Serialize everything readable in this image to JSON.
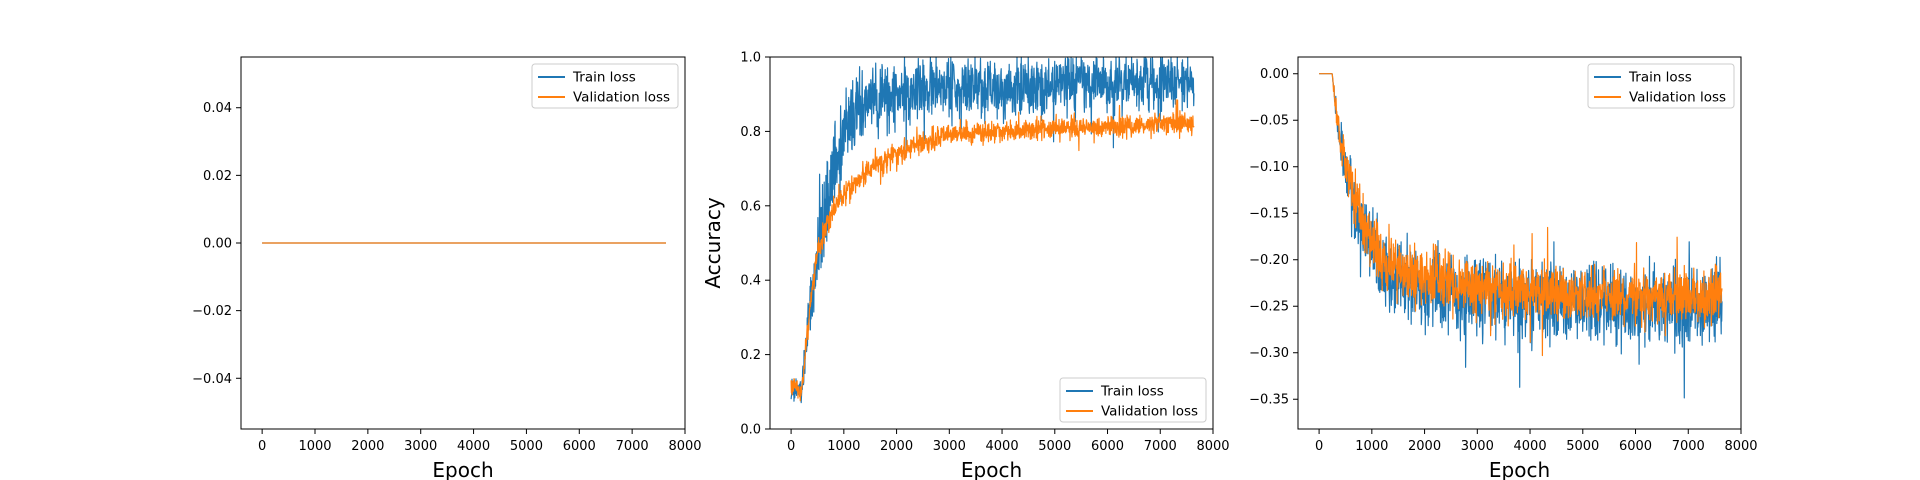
{
  "colors": {
    "train": "#1f77b4",
    "validation": "#ff7f0e"
  },
  "chart_data": [
    {
      "type": "line",
      "title": "",
      "xlabel": "Epoch",
      "ylabel": "",
      "xlim": [
        -400,
        8000
      ],
      "ylim": [
        -0.055,
        0.055
      ],
      "xticks": [
        0,
        1000,
        2000,
        3000,
        4000,
        5000,
        6000,
        7000,
        8000
      ],
      "xtick_labels": [
        "0",
        "1000",
        "2000",
        "3000",
        "4000",
        "5000",
        "6000",
        "7000",
        "8000"
      ],
      "yticks": [
        -0.04,
        -0.02,
        0.0,
        0.02,
        0.04
      ],
      "ytick_labels": [
        "−0.04",
        "−0.02",
        "0.00",
        "0.02",
        "0.04"
      ],
      "legend_position": "top-right",
      "series": [
        {
          "name": "Train loss",
          "x": [
            0,
            7640
          ],
          "values": [
            0,
            0
          ]
        },
        {
          "name": "Validation loss",
          "x": [
            0,
            7640
          ],
          "values": [
            0,
            0
          ]
        }
      ]
    },
    {
      "type": "line",
      "title": "",
      "xlabel": "Epoch",
      "ylabel": "Accuracy",
      "xlim": [
        -400,
        8000
      ],
      "ylim": [
        0.0,
        1.0
      ],
      "xticks": [
        0,
        1000,
        2000,
        3000,
        4000,
        5000,
        6000,
        7000,
        8000
      ],
      "xtick_labels": [
        "0",
        "1000",
        "2000",
        "3000",
        "4000",
        "5000",
        "6000",
        "7000",
        "8000"
      ],
      "yticks": [
        0.0,
        0.2,
        0.4,
        0.6,
        0.8,
        1.0
      ],
      "ytick_labels": [
        "0.0",
        "0.2",
        "0.4",
        "0.6",
        "0.8",
        "1.0"
      ],
      "legend_position": "bottom-right",
      "series": [
        {
          "name": "Train loss",
          "x": [
            0,
            200,
            300,
            400,
            500,
            600,
            800,
            1000,
            1200,
            1500,
            2000,
            2500,
            3000,
            4000,
            5000,
            6000,
            7000,
            7640
          ],
          "values": [
            0.1,
            0.1,
            0.25,
            0.35,
            0.45,
            0.55,
            0.7,
            0.8,
            0.85,
            0.88,
            0.9,
            0.91,
            0.92,
            0.92,
            0.93,
            0.93,
            0.93,
            0.93
          ],
          "noise": [
            0.03,
            0.03,
            0.06,
            0.08,
            0.1,
            0.1,
            0.1,
            0.09,
            0.08,
            0.07,
            0.07,
            0.07,
            0.07,
            0.07,
            0.06,
            0.06,
            0.06,
            0.06
          ]
        },
        {
          "name": "Validation loss",
          "x": [
            0,
            200,
            300,
            400,
            500,
            600,
            800,
            1000,
            1200,
            1500,
            2000,
            2500,
            3000,
            4000,
            5000,
            6000,
            7000,
            7640
          ],
          "values": [
            0.12,
            0.1,
            0.25,
            0.38,
            0.47,
            0.52,
            0.59,
            0.63,
            0.66,
            0.7,
            0.74,
            0.77,
            0.79,
            0.8,
            0.81,
            0.81,
            0.82,
            0.82
          ],
          "noise": [
            0.02,
            0.02,
            0.03,
            0.03,
            0.03,
            0.03,
            0.025,
            0.025,
            0.025,
            0.025,
            0.025,
            0.025,
            0.025,
            0.025,
            0.025,
            0.025,
            0.025,
            0.025
          ]
        }
      ]
    },
    {
      "type": "line",
      "title": "",
      "xlabel": "Epoch",
      "ylabel": "",
      "xlim": [
        -400,
        8000
      ],
      "ylim": [
        -0.382,
        0.018
      ],
      "xticks": [
        0,
        1000,
        2000,
        3000,
        4000,
        5000,
        6000,
        7000,
        8000
      ],
      "xtick_labels": [
        "0",
        "1000",
        "2000",
        "3000",
        "4000",
        "5000",
        "6000",
        "7000",
        "8000"
      ],
      "yticks": [
        -0.35,
        -0.3,
        -0.25,
        -0.2,
        -0.15,
        -0.1,
        -0.05,
        0.0
      ],
      "ytick_labels": [
        "−0.35",
        "−0.30",
        "−0.25",
        "−0.20",
        "−0.15",
        "−0.10",
        "−0.05",
        "0.00"
      ],
      "legend_position": "top-right",
      "series": [
        {
          "name": "Train loss",
          "x": [
            0,
            250,
            300,
            400,
            500,
            600,
            800,
            1000,
            1200,
            1500,
            2000,
            2500,
            3000,
            4000,
            5000,
            6000,
            7000,
            7640
          ],
          "values": [
            0.0,
            0.0,
            -0.03,
            -0.07,
            -0.1,
            -0.13,
            -0.16,
            -0.19,
            -0.21,
            -0.22,
            -0.23,
            -0.235,
            -0.24,
            -0.245,
            -0.245,
            -0.25,
            -0.25,
            -0.25
          ],
          "noise": [
            0.0,
            0.0,
            0.012,
            0.02,
            0.025,
            0.03,
            0.035,
            0.035,
            0.035,
            0.035,
            0.035,
            0.035,
            0.035,
            0.035,
            0.035,
            0.035,
            0.035,
            0.035
          ]
        },
        {
          "name": "Validation loss",
          "x": [
            0,
            250,
            300,
            400,
            500,
            600,
            800,
            1000,
            1200,
            1500,
            2000,
            2500,
            3000,
            4000,
            5000,
            6000,
            7000,
            7640
          ],
          "values": [
            0.0,
            0.0,
            -0.03,
            -0.07,
            -0.1,
            -0.12,
            -0.15,
            -0.18,
            -0.2,
            -0.21,
            -0.22,
            -0.225,
            -0.23,
            -0.235,
            -0.235,
            -0.24,
            -0.24,
            -0.24
          ],
          "noise": [
            0.0,
            0.0,
            0.01,
            0.015,
            0.02,
            0.022,
            0.025,
            0.025,
            0.025,
            0.025,
            0.025,
            0.025,
            0.025,
            0.025,
            0.025,
            0.025,
            0.025,
            0.025
          ]
        }
      ]
    }
  ]
}
